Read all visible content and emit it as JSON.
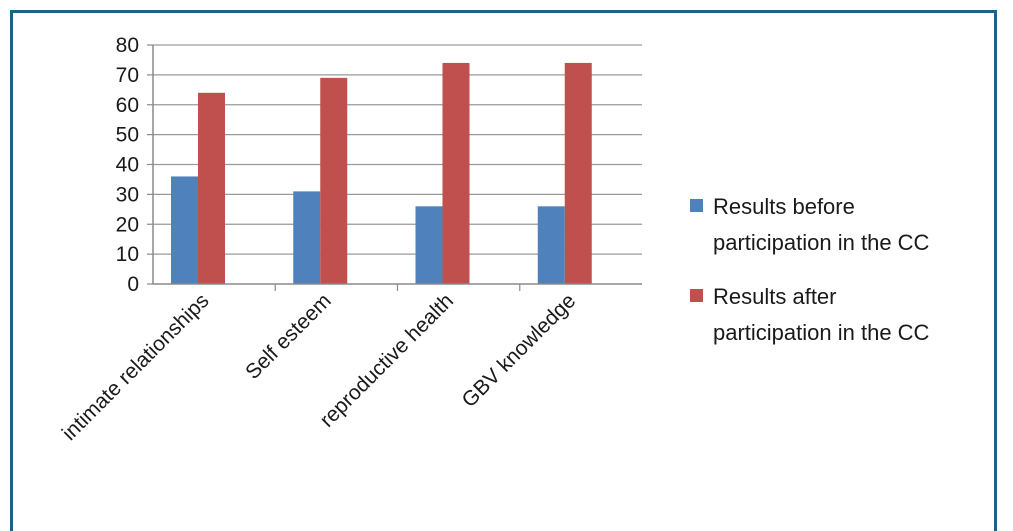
{
  "chart_data": {
    "type": "bar",
    "title": "",
    "xlabel": "",
    "ylabel": "",
    "categories": [
      "intimate relationships",
      "Self esteem",
      "reproductive health",
      "GBV knowledge"
    ],
    "series": [
      {
        "name": "Results before participation in the CC",
        "values": [
          36,
          31,
          26,
          26
        ],
        "color": "#4f81bd",
        "legend_lines": [
          "Results before",
          "participation in the CC"
        ]
      },
      {
        "name": "Results after participation in the CC",
        "values": [
          64,
          69,
          74,
          74
        ],
        "color": "#c0504d",
        "legend_lines": [
          "Results after",
          "participation in the CC"
        ]
      }
    ],
    "ylim": [
      0,
      80
    ],
    "yticks": [
      0,
      10,
      20,
      30,
      40,
      50,
      60,
      70,
      80
    ],
    "grid": true,
    "legend_position": "right"
  }
}
